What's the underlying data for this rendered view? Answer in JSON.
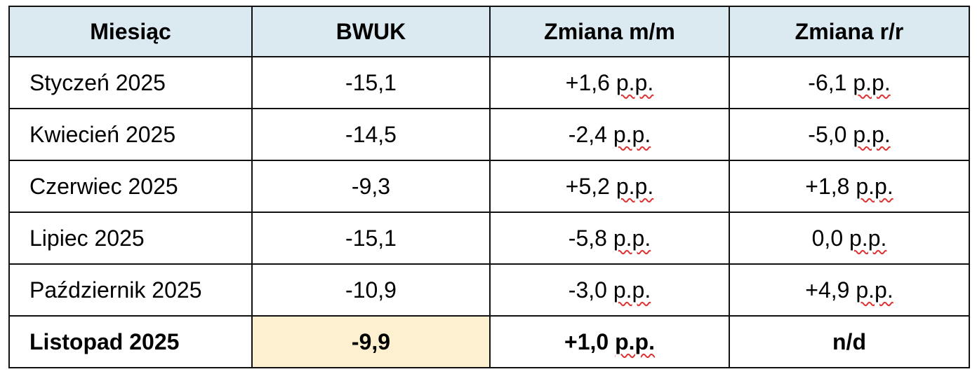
{
  "table": {
    "header": [
      "Miesiąc",
      "BWUK",
      "Zmiana m/m",
      "Zmiana r/r"
    ],
    "rows": [
      [
        "Styczeń 2025",
        "-15,1",
        "+1,6 p.p.",
        "-6,1 p.p."
      ],
      [
        "Kwiecień 2025",
        "-14,5",
        "-2,4 p.p.",
        "-5,0 p.p."
      ],
      [
        "Czerwiec 2025",
        "-9,3",
        "+5,2 p.p.",
        "+1,8 p.p."
      ],
      [
        "Lipiec 2025",
        "-15,1",
        "-5,8 p.p.",
        "0,0 p.p."
      ],
      [
        "Październik 2025",
        "-10,9",
        "-3,0 p.p.",
        "+4,9 p.p."
      ],
      [
        "Listopad 2025",
        "-9,9",
        "+1,0 p.p.",
        "n/d"
      ]
    ]
  }
}
